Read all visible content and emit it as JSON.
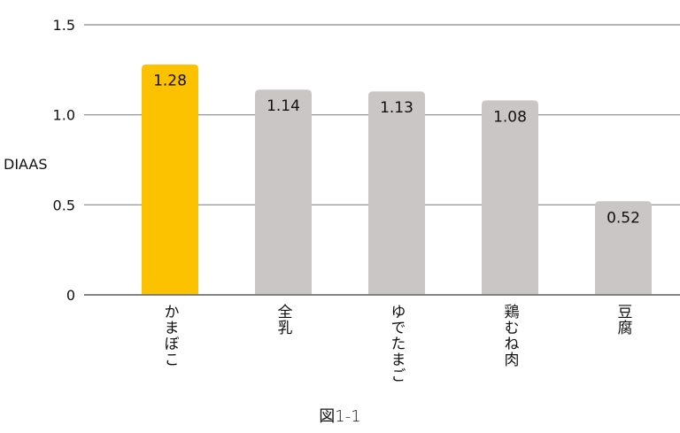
{
  "chart_data": {
    "type": "bar",
    "title": "",
    "caption": "図1-1",
    "xlabel": "",
    "ylabel": "DIAAS",
    "ylim": [
      0,
      1.5
    ],
    "yticks": [
      0,
      0.5,
      1.0,
      1.5
    ],
    "ytick_labels": [
      "0",
      "0.5",
      "1.0",
      "1.5"
    ],
    "grid": true,
    "categories": [
      "かまぼこ",
      "全乳",
      "ゆでたまご",
      "鶏むね肉",
      "豆腐"
    ],
    "values": [
      1.28,
      1.14,
      1.13,
      1.08,
      0.52
    ],
    "data_labels": [
      "1.28",
      "1.14",
      "1.13",
      "1.08",
      "0.52"
    ],
    "colors": {
      "highlight": "#fcc200",
      "default": "#c9c6c5",
      "grid": "#888888"
    },
    "highlight_index": 0
  }
}
